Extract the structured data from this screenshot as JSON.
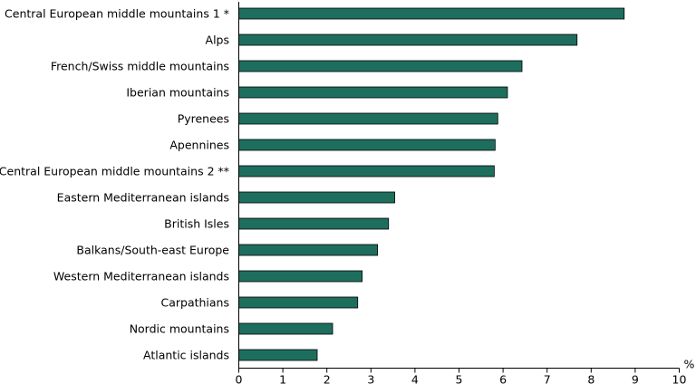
{
  "chart_data": {
    "type": "bar",
    "orientation": "horizontal",
    "categories": [
      "Central European middle mountains 1 *",
      "Alps",
      "French/Swiss middle mountains",
      "Iberian mountains",
      "Pyrenees",
      "Apennines",
      "Central European middle mountains 2 **",
      "Eastern Mediterranean islands",
      "British Isles",
      "Balkans/South-east Europe",
      "Western Mediterranean islands",
      "Carpathians",
      "Nordic mountains",
      "Atlantic islands"
    ],
    "values": [
      8.75,
      7.68,
      6.43,
      6.1,
      5.88,
      5.82,
      5.8,
      3.54,
      3.4,
      3.15,
      2.8,
      2.7,
      2.13,
      1.78
    ],
    "xlim": [
      0,
      10
    ],
    "x_ticks": [
      0,
      1,
      2,
      3,
      4,
      5,
      6,
      7,
      8,
      9,
      10
    ],
    "x_unit": "%",
    "bar_color": "#1e6e5e",
    "grid": false,
    "legend": "none"
  }
}
